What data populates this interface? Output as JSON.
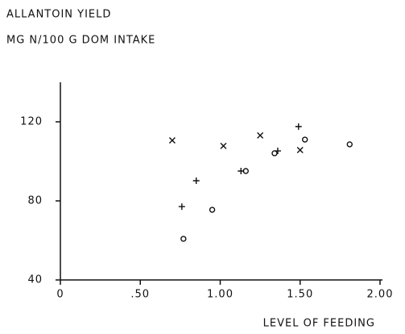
{
  "chart_data": {
    "type": "scatter",
    "title": "ALLANTOIN YIELD",
    "subtitle": "MG N/100 G  DOM INTAKE",
    "x_label": "LEVEL OF FEEDING",
    "xlim": [
      0,
      2
    ],
    "ylim": [
      40,
      140
    ],
    "xticks": [
      0,
      {
        "value": 0.5,
        "label": ".50"
      },
      {
        "value": 1,
        "label": "1.00"
      },
      {
        "value": 1.5,
        "label": "1.50"
      },
      {
        "value": 2,
        "label": "2.00"
      }
    ],
    "yticks": [
      40,
      80,
      120
    ],
    "series": [
      {
        "marker": "x",
        "x": [
          0.7,
          1.02,
          1.25,
          1.5
        ],
        "values": [
          110.6,
          107.8,
          113.1,
          105.7
        ]
      },
      {
        "marker": "plus",
        "x": [
          0.76,
          0.85,
          1.13,
          1.36,
          1.49
        ],
        "values": [
          77.1,
          90.2,
          95.1,
          105.3,
          117.6
        ]
      },
      {
        "marker": "circle",
        "x": [
          0.77,
          0.95,
          1.16,
          1.34,
          1.53,
          1.81
        ],
        "values": [
          60.8,
          75.5,
          95.1,
          104.1,
          111.0,
          108.6
        ]
      }
    ]
  }
}
